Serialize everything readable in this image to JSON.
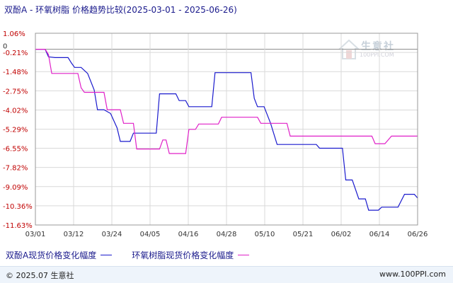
{
  "title": "双酚A - 环氧树脂 价格趋势比较(2025-03-01 - 2025-06-26)",
  "colors": {
    "series_a": "#1a1acd",
    "series_b": "#e020c8",
    "grid": "#d9d9d9",
    "axis": "#999999",
    "label": "#c00000"
  },
  "watermark": {
    "name": "生意社",
    "url": "100PPI.COM"
  },
  "chart_data": {
    "type": "line",
    "title": "双酚A - 环氧树脂 价格趋势比较(2025-03-01 - 2025-06-26)",
    "x_ticks": [
      "03/01",
      "03/12",
      "03/24",
      "04/05",
      "04/16",
      "04/28",
      "05/10",
      "05/21",
      "06/02",
      "06/14",
      "06/26"
    ],
    "x_range": [
      "2025-03-01",
      "2025-06-26"
    ],
    "y_ticks": [
      "1.06%",
      "0",
      "-0.21%",
      "-1.48%",
      "-2.75%",
      "-4.02%",
      "-5.29%",
      "-6.55%",
      "-7.82%",
      "-9.09%",
      "-10.36%",
      "-11.63%"
    ],
    "ylim": [
      -11.63,
      1.06
    ],
    "grid": true,
    "legend_position": "bottom-left",
    "series": [
      {
        "name": "双酚A现货价格变化幅度",
        "color": "#1a1acd",
        "points": [
          [
            "2025-03-01",
            0
          ],
          [
            "2025-03-04",
            0
          ],
          [
            "2025-03-05",
            -0.5
          ],
          [
            "2025-03-07",
            -0.55
          ],
          [
            "2025-03-11",
            -0.55
          ],
          [
            "2025-03-12",
            -0.9
          ],
          [
            "2025-03-13",
            -1.2
          ],
          [
            "2025-03-15",
            -1.2
          ],
          [
            "2025-03-17",
            -1.6
          ],
          [
            "2025-03-19",
            -2.7
          ],
          [
            "2025-03-20",
            -4.0
          ],
          [
            "2025-03-22",
            -4.0
          ],
          [
            "2025-03-24",
            -4.25
          ],
          [
            "2025-03-26",
            -5.2
          ],
          [
            "2025-03-27",
            -6.1
          ],
          [
            "2025-03-30",
            -6.1
          ],
          [
            "2025-03-31",
            -5.55
          ],
          [
            "2025-04-07",
            -5.55
          ],
          [
            "2025-04-08",
            -2.95
          ],
          [
            "2025-04-13",
            -2.95
          ],
          [
            "2025-04-14",
            -3.4
          ],
          [
            "2025-04-16",
            -3.4
          ],
          [
            "2025-04-17",
            -3.8
          ],
          [
            "2025-04-24",
            -3.8
          ],
          [
            "2025-04-25",
            -1.55
          ],
          [
            "2025-05-06",
            -1.55
          ],
          [
            "2025-05-07",
            -3.25
          ],
          [
            "2025-05-08",
            -3.8
          ],
          [
            "2025-05-10",
            -3.8
          ],
          [
            "2025-05-12",
            -4.9
          ],
          [
            "2025-05-14",
            -6.3
          ],
          [
            "2025-05-26",
            -6.3
          ],
          [
            "2025-05-27",
            -6.55
          ],
          [
            "2025-06-03",
            -6.55
          ],
          [
            "2025-06-04",
            -8.65
          ],
          [
            "2025-06-06",
            -8.65
          ],
          [
            "2025-06-08",
            -9.9
          ],
          [
            "2025-06-10",
            -9.9
          ],
          [
            "2025-06-11",
            -10.65
          ],
          [
            "2025-06-14",
            -10.65
          ],
          [
            "2025-06-15",
            -10.45
          ],
          [
            "2025-06-20",
            -10.45
          ],
          [
            "2025-06-22",
            -9.6
          ],
          [
            "2025-06-25",
            -9.6
          ],
          [
            "2025-06-26",
            -9.85
          ]
        ]
      },
      {
        "name": "环氧树脂现货价格变化幅度",
        "color": "#e020c8",
        "points": [
          [
            "2025-03-01",
            0
          ],
          [
            "2025-03-04",
            0
          ],
          [
            "2025-03-05",
            -0.35
          ],
          [
            "2025-03-06",
            -1.6
          ],
          [
            "2025-03-14",
            -1.6
          ],
          [
            "2025-03-15",
            -2.55
          ],
          [
            "2025-03-16",
            -2.85
          ],
          [
            "2025-03-22",
            -2.85
          ],
          [
            "2025-03-23",
            -4.0
          ],
          [
            "2025-03-27",
            -4.0
          ],
          [
            "2025-03-28",
            -4.9
          ],
          [
            "2025-03-31",
            -4.9
          ],
          [
            "2025-04-01",
            -6.6
          ],
          [
            "2025-04-08",
            -6.6
          ],
          [
            "2025-04-09",
            -6.0
          ],
          [
            "2025-04-10",
            -6.0
          ],
          [
            "2025-04-11",
            -6.9
          ],
          [
            "2025-04-16",
            -6.9
          ],
          [
            "2025-04-17",
            -5.3
          ],
          [
            "2025-04-19",
            -5.3
          ],
          [
            "2025-04-20",
            -4.95
          ],
          [
            "2025-04-26",
            -4.95
          ],
          [
            "2025-04-27",
            -4.5
          ],
          [
            "2025-05-08",
            -4.5
          ],
          [
            "2025-05-09",
            -4.9
          ],
          [
            "2025-05-17",
            -4.9
          ],
          [
            "2025-05-18",
            -5.75
          ],
          [
            "2025-06-12",
            -5.75
          ],
          [
            "2025-06-13",
            -6.25
          ],
          [
            "2025-06-16",
            -6.25
          ],
          [
            "2025-06-18",
            -5.75
          ],
          [
            "2025-06-26",
            -5.75
          ]
        ]
      }
    ]
  },
  "legend": {
    "series_a_label": "双酚A现货价格变化幅度",
    "series_b_label": "环氧树脂现货价格变化幅度"
  },
  "footer": {
    "copyright": "© 2025.07 生意社",
    "site": "www.100PPI.com"
  }
}
